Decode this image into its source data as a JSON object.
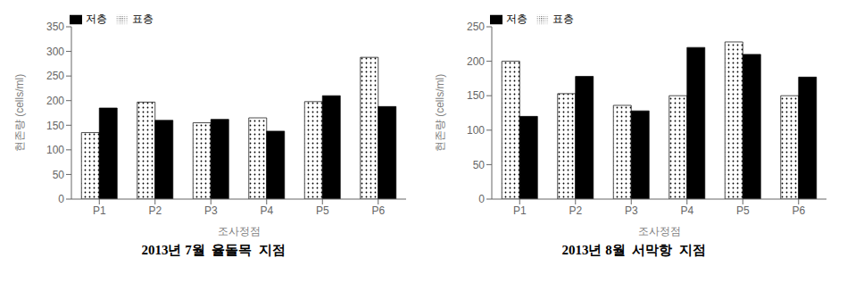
{
  "chart_data": [
    {
      "type": "bar",
      "title": "2013년 7월  율돌목  지점",
      "xlabel": "조사정점",
      "ylabel": "현존량 (cells/ml)",
      "categories": [
        "P1",
        "P2",
        "P3",
        "P4",
        "P5",
        "P6"
      ],
      "series": [
        {
          "name": "표층",
          "values": [
            135,
            197,
            155,
            165,
            198,
            288
          ]
        },
        {
          "name": "저층",
          "color": "#000000",
          "values": [
            185,
            160,
            162,
            138,
            210,
            188
          ]
        }
      ],
      "ylim": [
        0,
        350
      ],
      "yticks": [
        0,
        50,
        100,
        150,
        200,
        250,
        300,
        350
      ],
      "grid": false,
      "legend": "upper left"
    },
    {
      "type": "bar",
      "title": "2013년 8월  서막항  지점",
      "xlabel": "조사정점",
      "ylabel": "현존량 (cells/ml)",
      "categories": [
        "P1",
        "P2",
        "P3",
        "P4",
        "P5",
        "P6"
      ],
      "series": [
        {
          "name": "표층",
          "values": [
            200,
            153,
            136,
            150,
            228,
            150
          ]
        },
        {
          "name": "저층",
          "color": "#000000",
          "values": [
            120,
            178,
            128,
            220,
            210,
            177
          ]
        }
      ],
      "ylim": [
        0,
        250
      ],
      "yticks": [
        0,
        50,
        100,
        150,
        200,
        250
      ],
      "grid": false,
      "legend": "upper left"
    }
  ]
}
